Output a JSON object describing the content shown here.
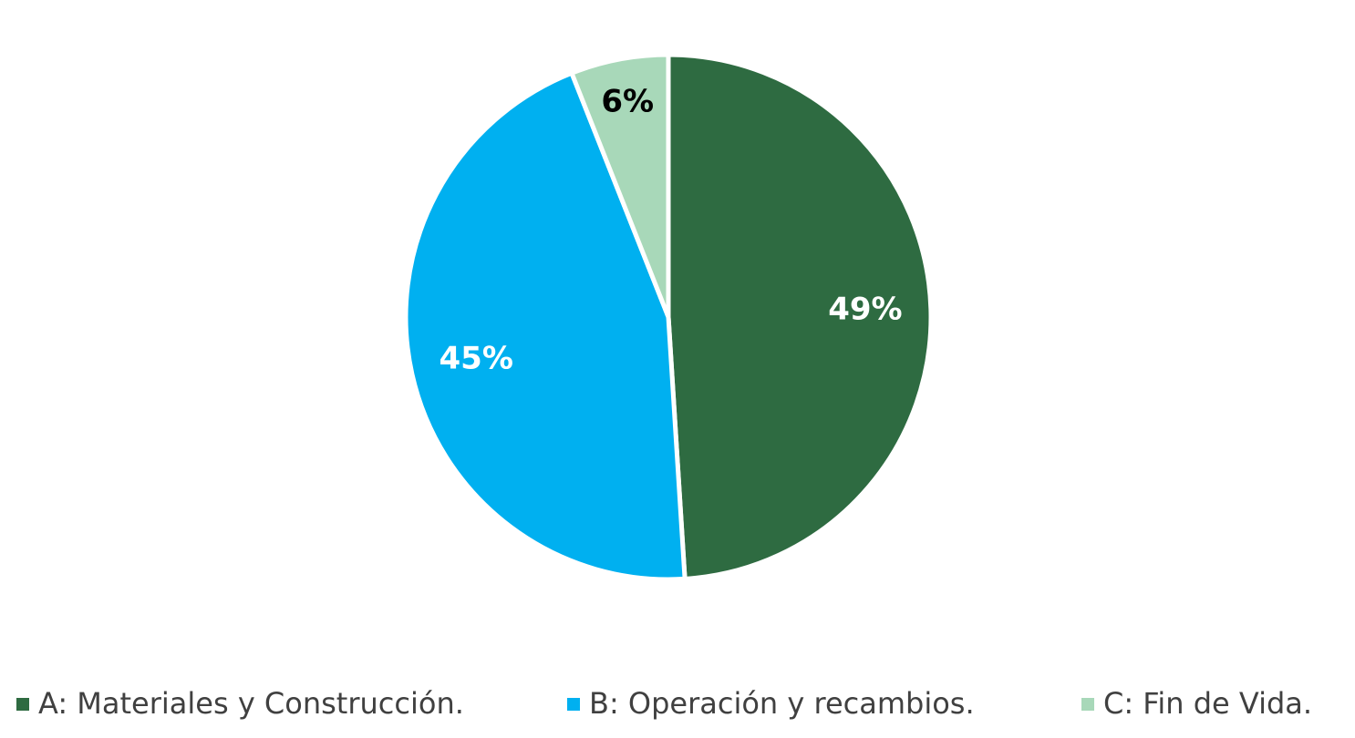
{
  "chart_data": {
    "type": "pie",
    "categories": [
      "A: Materiales y Construcción.",
      "B: Operación y recambios.",
      "C: Fin de Vida."
    ],
    "values": [
      49,
      45,
      6
    ],
    "value_labels": [
      "49%",
      "45%",
      "6%"
    ],
    "colors": [
      "#2e6b41",
      "#00b0f0",
      "#a8d8b9"
    ],
    "label_colors": [
      "#ffffff",
      "#ffffff",
      "#000000"
    ],
    "legend": "bottom"
  }
}
